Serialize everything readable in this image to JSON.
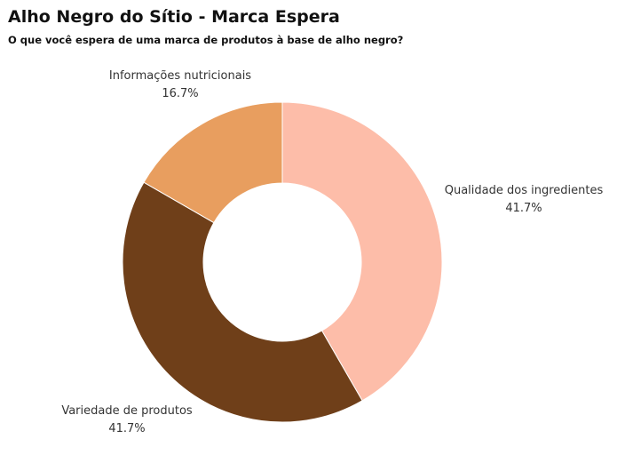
{
  "title": "Alho Negro do Sítio - Marca Espera",
  "subtitle": "O que você espera de uma marca de produtos à base de alho negro?",
  "chart_data": {
    "type": "pie",
    "donut": true,
    "slices": [
      {
        "label": "Qualidade dos ingredientes",
        "value": 41.7,
        "value_label": "41.7%",
        "color": "#FDBDA9"
      },
      {
        "label": "Variedade de produtos",
        "value": 41.7,
        "value_label": "41.7%",
        "color": "#6F3F19"
      },
      {
        "label": "Informações nutricionais",
        "value": 16.7,
        "value_label": "16.7%",
        "color": "#E89E5F"
      }
    ]
  }
}
